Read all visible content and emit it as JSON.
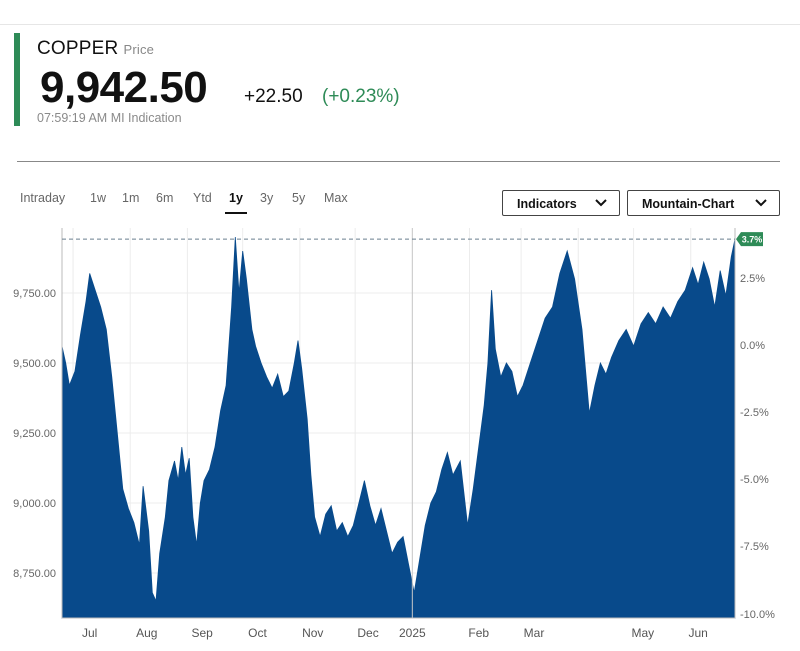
{
  "quote": {
    "name": "COPPER",
    "name_sub": "Price",
    "price": "9,942.50",
    "change": "+22.50",
    "change_pct": "(+0.23%)",
    "time": "07:59:19 AM",
    "source": "MI Indication",
    "accent_color": "#2e8b57"
  },
  "ranges": {
    "items": [
      "Intraday",
      "1w",
      "1m",
      "6m",
      "Ytd",
      "1y",
      "3y",
      "5y",
      "Max"
    ],
    "active": "1y"
  },
  "controls": {
    "indicators_label": "Indicators",
    "chart_type_label": "Mountain-Chart",
    "chevron_icon": "chevron-down-icon"
  },
  "chart_data": {
    "type": "area",
    "fill_color": "#084a8b",
    "x_ticks": [
      "Jul",
      "Aug",
      "Sep",
      "Oct",
      "Nov",
      "Dec",
      "2025",
      "Feb",
      "Mar",
      "May",
      "Jun"
    ],
    "y_left_ticks": [
      {
        "value": 8750,
        "label": "8,750.00"
      },
      {
        "value": 9000,
        "label": "9,000.00"
      },
      {
        "value": 9250,
        "label": "9,250.00"
      },
      {
        "value": 9500,
        "label": "9,500.00"
      },
      {
        "value": 9750,
        "label": "9,750.00"
      }
    ],
    "y_right_ticks": [
      "2.5%",
      "0.0%",
      "-2.5%",
      "-5.0%",
      "-7.5%",
      "-10.0%"
    ],
    "reference_line": {
      "value": 9942.5,
      "label": "3.7%"
    },
    "ylim": [
      8700,
      10000
    ],
    "x_range": [
      "2024-06-25",
      "2025-06-25"
    ],
    "points": [
      [
        "2024-06-25",
        9560
      ],
      [
        "2024-06-27",
        9500
      ],
      [
        "2024-06-29",
        9420
      ],
      [
        "2024-07-02",
        9470
      ],
      [
        "2024-07-05",
        9600
      ],
      [
        "2024-07-08",
        9720
      ],
      [
        "2024-07-10",
        9820
      ],
      [
        "2024-07-13",
        9760
      ],
      [
        "2024-07-16",
        9700
      ],
      [
        "2024-07-19",
        9620
      ],
      [
        "2024-07-22",
        9450
      ],
      [
        "2024-07-25",
        9250
      ],
      [
        "2024-07-28",
        9050
      ],
      [
        "2024-07-31",
        8980
      ],
      [
        "2024-08-03",
        8930
      ],
      [
        "2024-08-06",
        8850
      ],
      [
        "2024-08-08",
        9060
      ],
      [
        "2024-08-11",
        8900
      ],
      [
        "2024-08-13",
        8680
      ],
      [
        "2024-08-15",
        8650
      ],
      [
        "2024-08-17",
        8820
      ],
      [
        "2024-08-20",
        8950
      ],
      [
        "2024-08-22",
        9080
      ],
      [
        "2024-08-25",
        9150
      ],
      [
        "2024-08-27",
        9080
      ],
      [
        "2024-08-29",
        9200
      ],
      [
        "2024-08-31",
        9100
      ],
      [
        "2024-09-02",
        9160
      ],
      [
        "2024-09-04",
        8950
      ],
      [
        "2024-09-06",
        8850
      ],
      [
        "2024-09-08",
        9000
      ],
      [
        "2024-09-10",
        9080
      ],
      [
        "2024-09-13",
        9120
      ],
      [
        "2024-09-16",
        9200
      ],
      [
        "2024-09-19",
        9330
      ],
      [
        "2024-09-22",
        9420
      ],
      [
        "2024-09-25",
        9700
      ],
      [
        "2024-09-27",
        9950
      ],
      [
        "2024-09-29",
        9750
      ],
      [
        "2024-10-01",
        9900
      ],
      [
        "2024-10-03",
        9800
      ],
      [
        "2024-10-06",
        9620
      ],
      [
        "2024-10-08",
        9560
      ],
      [
        "2024-10-11",
        9500
      ],
      [
        "2024-10-14",
        9450
      ],
      [
        "2024-10-17",
        9410
      ],
      [
        "2024-10-20",
        9460
      ],
      [
        "2024-10-23",
        9380
      ],
      [
        "2024-10-26",
        9400
      ],
      [
        "2024-10-29",
        9500
      ],
      [
        "2024-10-31",
        9580
      ],
      [
        "2024-11-02",
        9480
      ],
      [
        "2024-11-05",
        9300
      ],
      [
        "2024-11-07",
        9100
      ],
      [
        "2024-11-09",
        8950
      ],
      [
        "2024-11-12",
        8880
      ],
      [
        "2024-11-15",
        8960
      ],
      [
        "2024-11-18",
        8990
      ],
      [
        "2024-11-21",
        8900
      ],
      [
        "2024-11-24",
        8930
      ],
      [
        "2024-11-27",
        8880
      ],
      [
        "2024-11-30",
        8920
      ],
      [
        "2024-12-03",
        9000
      ],
      [
        "2024-12-06",
        9080
      ],
      [
        "2024-12-09",
        8990
      ],
      [
        "2024-12-12",
        8920
      ],
      [
        "2024-12-15",
        8980
      ],
      [
        "2024-12-18",
        8900
      ],
      [
        "2024-12-21",
        8820
      ],
      [
        "2024-12-24",
        8860
      ],
      [
        "2024-12-27",
        8880
      ],
      [
        "2024-12-30",
        8780
      ],
      [
        "2025-01-02",
        8680
      ],
      [
        "2025-01-05",
        8800
      ],
      [
        "2025-01-08",
        8920
      ],
      [
        "2025-01-11",
        9000
      ],
      [
        "2025-01-14",
        9040
      ],
      [
        "2025-01-17",
        9120
      ],
      [
        "2025-01-20",
        9180
      ],
      [
        "2025-01-23",
        9100
      ],
      [
        "2025-01-27",
        9150
      ],
      [
        "2025-01-31",
        8920
      ],
      [
        "2025-02-03",
        9050
      ],
      [
        "2025-02-06",
        9200
      ],
      [
        "2025-02-09",
        9350
      ],
      [
        "2025-02-11",
        9500
      ],
      [
        "2025-02-13",
        9760
      ],
      [
        "2025-02-15",
        9550
      ],
      [
        "2025-02-18",
        9450
      ],
      [
        "2025-02-21",
        9500
      ],
      [
        "2025-02-24",
        9470
      ],
      [
        "2025-02-27",
        9380
      ],
      [
        "2025-03-02",
        9420
      ],
      [
        "2025-03-06",
        9500
      ],
      [
        "2025-03-10",
        9580
      ],
      [
        "2025-03-14",
        9660
      ],
      [
        "2025-03-18",
        9700
      ],
      [
        "2025-03-22",
        9820
      ],
      [
        "2025-03-26",
        9900
      ],
      [
        "2025-03-30",
        9800
      ],
      [
        "2025-04-03",
        9620
      ],
      [
        "2025-04-07",
        9320
      ],
      [
        "2025-04-10",
        9420
      ],
      [
        "2025-04-13",
        9500
      ],
      [
        "2025-04-16",
        9460
      ],
      [
        "2025-04-19",
        9520
      ],
      [
        "2025-04-23",
        9580
      ],
      [
        "2025-04-27",
        9620
      ],
      [
        "2025-05-01",
        9560
      ],
      [
        "2025-05-05",
        9640
      ],
      [
        "2025-05-09",
        9680
      ],
      [
        "2025-05-13",
        9640
      ],
      [
        "2025-05-17",
        9700
      ],
      [
        "2025-05-21",
        9660
      ],
      [
        "2025-05-25",
        9720
      ],
      [
        "2025-05-29",
        9760
      ],
      [
        "2025-06-02",
        9840
      ],
      [
        "2025-06-05",
        9780
      ],
      [
        "2025-06-08",
        9860
      ],
      [
        "2025-06-11",
        9800
      ],
      [
        "2025-06-14",
        9700
      ],
      [
        "2025-06-17",
        9830
      ],
      [
        "2025-06-20",
        9740
      ],
      [
        "2025-06-23",
        9880
      ],
      [
        "2025-06-25",
        9942.5
      ]
    ]
  }
}
